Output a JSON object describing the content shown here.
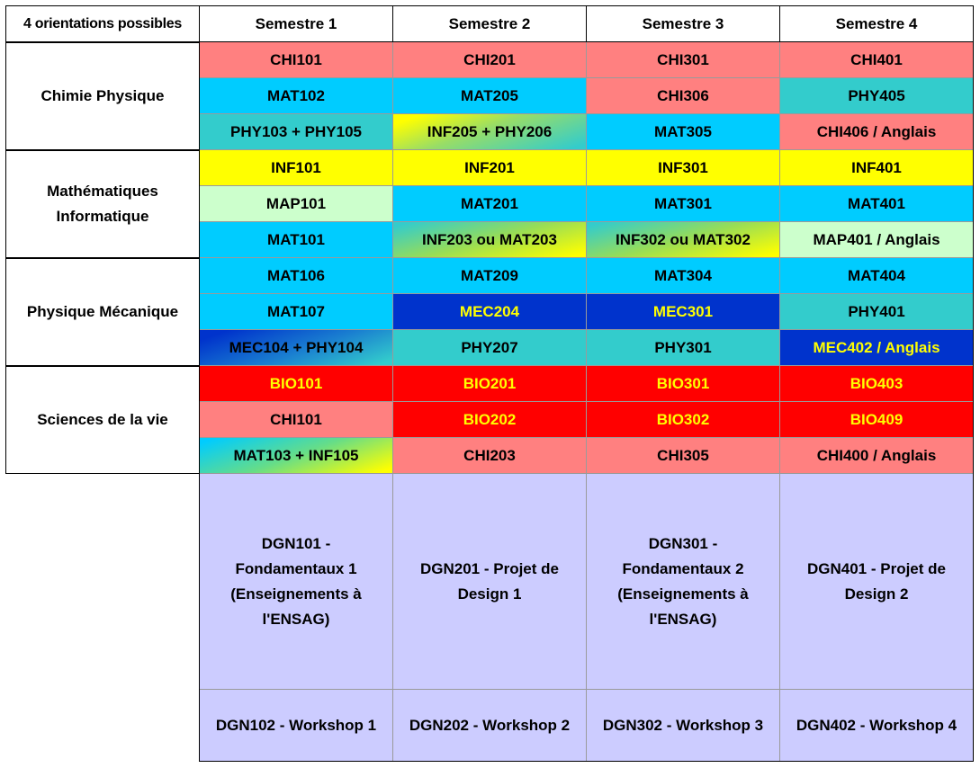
{
  "colors": {
    "salmon": "#ff8080",
    "cyan": "#00ccff",
    "teal": "#33cccc",
    "yellow": "#ffff00",
    "pale_green": "#ccffcc",
    "royal_blue": "#0033cc",
    "red": "#ff0000",
    "lavender": "#ccccff",
    "gold_text": "#ffff00"
  },
  "header": {
    "corner": "4 orientations possibles",
    "semesters": [
      "Semestre 1",
      "Semestre 2",
      "Semestre 3",
      "Semestre 4"
    ]
  },
  "groups": [
    {
      "name": "Chimie Physique",
      "rows": [
        [
          {
            "label": "CHI101",
            "bg": "salmon"
          },
          {
            "label": "CHI201",
            "bg": "salmon"
          },
          {
            "label": "CHI301",
            "bg": "salmon"
          },
          {
            "label": "CHI401",
            "bg": "salmon"
          }
        ],
        [
          {
            "label": "MAT102",
            "bg": "cyan"
          },
          {
            "label": "MAT205",
            "bg": "cyan"
          },
          {
            "label": "CHI306",
            "bg": "salmon"
          },
          {
            "label": "PHY405",
            "bg": "teal"
          }
        ],
        [
          {
            "label": "PHY103 + PHY105",
            "bg": "teal"
          },
          {
            "label": "INF205 + PHY206",
            "bg": "grad-yellow-teal"
          },
          {
            "label": "MAT305",
            "bg": "cyan"
          },
          {
            "label": "CHI406 / Anglais",
            "bg": "salmon"
          }
        ]
      ]
    },
    {
      "name": "Mathématiques Informatique",
      "rows": [
        [
          {
            "label": "INF101",
            "bg": "yellow"
          },
          {
            "label": "INF201",
            "bg": "yellow"
          },
          {
            "label": "INF301",
            "bg": "yellow"
          },
          {
            "label": "INF401",
            "bg": "yellow"
          }
        ],
        [
          {
            "label": "MAP101",
            "bg": "pale_green"
          },
          {
            "label": "MAT201",
            "bg": "cyan"
          },
          {
            "label": "MAT301",
            "bg": "cyan"
          },
          {
            "label": "MAT401",
            "bg": "cyan"
          }
        ],
        [
          {
            "label": "MAT101",
            "bg": "cyan"
          },
          {
            "label": "INF203 ou MAT203",
            "bg": "grad-green-yellow"
          },
          {
            "label": "INF302 ou MAT302",
            "bg": "grad-green-yellow"
          },
          {
            "label": "MAP401 / Anglais",
            "bg": "pale_green"
          }
        ]
      ]
    },
    {
      "name": "Physique Mécanique",
      "rows": [
        [
          {
            "label": "MAT106",
            "bg": "cyan"
          },
          {
            "label": "MAT209",
            "bg": "cyan"
          },
          {
            "label": "MAT304",
            "bg": "cyan"
          },
          {
            "label": "MAT404",
            "bg": "cyan"
          }
        ],
        [
          {
            "label": "MAT107",
            "bg": "cyan"
          },
          {
            "label": "MEC204",
            "bg": "royal_blue",
            "text": "gold"
          },
          {
            "label": "MEC301",
            "bg": "royal_blue",
            "text": "gold"
          },
          {
            "label": "PHY401",
            "bg": "teal"
          }
        ],
        [
          {
            "label": "MEC104 + PHY104",
            "bg": "grad-blue-teal"
          },
          {
            "label": "PHY207",
            "bg": "teal"
          },
          {
            "label": "PHY301",
            "bg": "teal"
          },
          {
            "label": "MEC402 / Anglais",
            "bg": "royal_blue",
            "text": "gold"
          }
        ]
      ]
    },
    {
      "name": "Sciences de la vie",
      "rows": [
        [
          {
            "label": "BIO101",
            "bg": "red",
            "text": "gold"
          },
          {
            "label": "BIO201",
            "bg": "red",
            "text": "gold"
          },
          {
            "label": "BIO301",
            "bg": "red",
            "text": "gold"
          },
          {
            "label": "BIO403",
            "bg": "red",
            "text": "gold"
          }
        ],
        [
          {
            "label": "CHI101",
            "bg": "salmon"
          },
          {
            "label": "BIO202",
            "bg": "red",
            "text": "gold"
          },
          {
            "label": "BIO302",
            "bg": "red",
            "text": "gold"
          },
          {
            "label": "BIO409",
            "bg": "red",
            "text": "gold"
          }
        ],
        [
          {
            "label": "MAT103 + INF105",
            "bg": "grad-cyan-yellow"
          },
          {
            "label": "CHI203",
            "bg": "salmon"
          },
          {
            "label": "CHI305",
            "bg": "salmon"
          },
          {
            "label": "CHI400 / Anglais",
            "bg": "salmon"
          }
        ]
      ]
    }
  ],
  "design": {
    "main": [
      "DGN101 - Fondamentaux 1 (Enseignements à l'ENSAG)",
      "DGN201 - Projet de Design 1",
      "DGN301 - Fondamentaux 2 (Enseignements à l'ENSAG)",
      "DGN401 - Projet de Design 2"
    ],
    "workshops": [
      "DGN102 - Workshop 1",
      "DGN202 - Workshop 2",
      "DGN302 - Workshop 3",
      "DGN402 - Workshop 4"
    ]
  }
}
